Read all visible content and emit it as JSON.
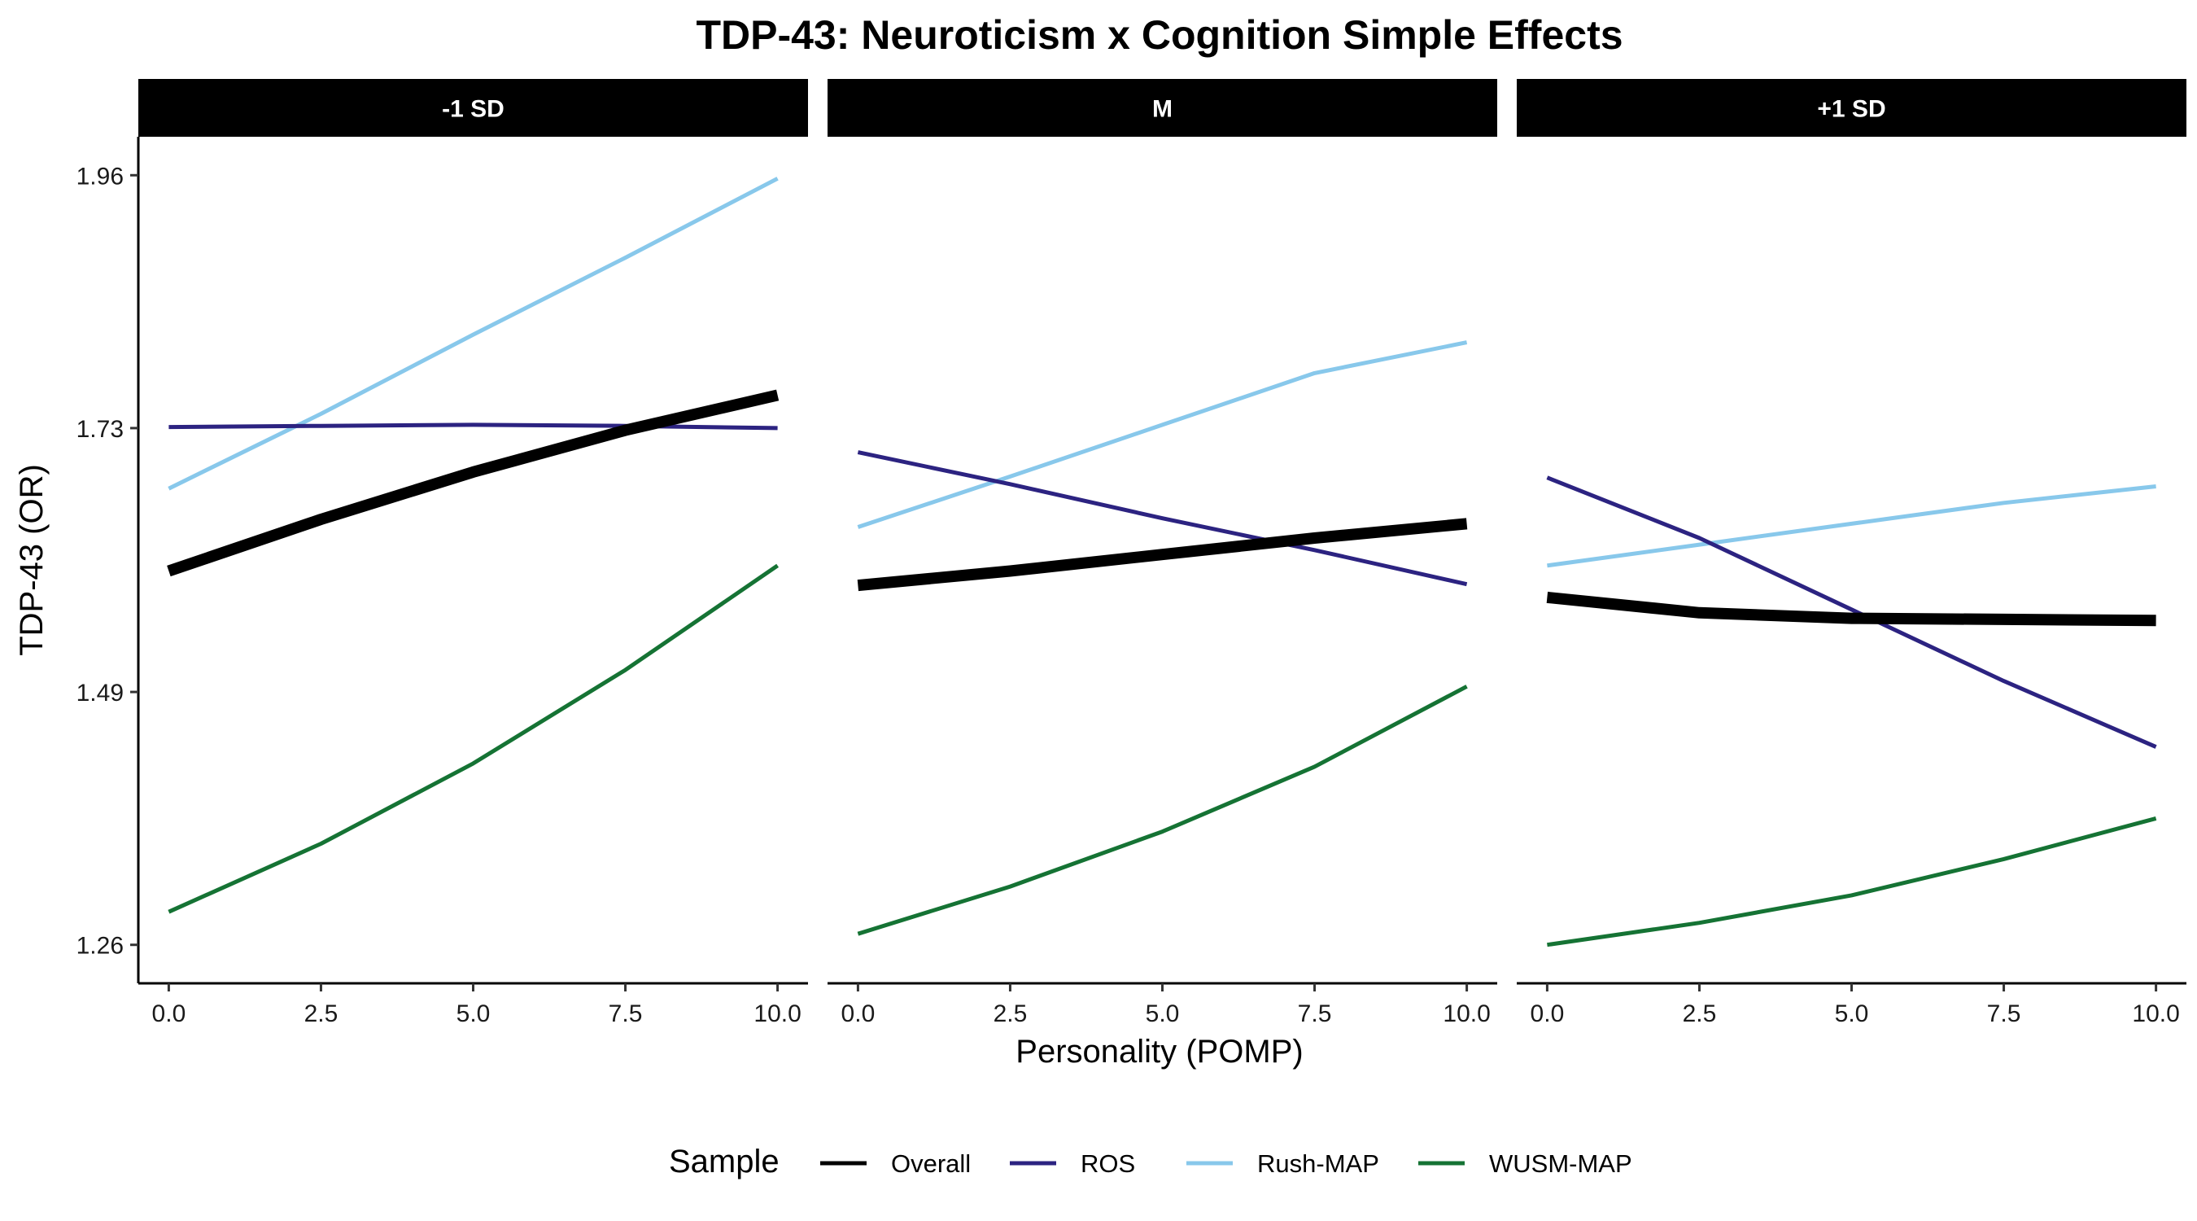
{
  "chart_data": {
    "type": "line",
    "title": "TDP-43: Neuroticism x Cognition Simple Effects",
    "xlabel": "Personality (POMP)",
    "ylabel": "TDP-43 (OR)",
    "x_ticks": [
      "0.0",
      "2.5",
      "5.0",
      "7.5",
      "10.0"
    ],
    "y_ticks": [
      "1.26",
      "1.49",
      "1.73",
      "1.96"
    ],
    "xlim": [
      -0.5,
      10.5
    ],
    "ylim": [
      1.225,
      1.995
    ],
    "grid": false,
    "legend": {
      "title": "Sample",
      "position": "bottom",
      "entries": [
        "Overall",
        "ROS",
        "Rush-MAP",
        "WUSM-MAP"
      ]
    },
    "colors": {
      "Overall": "#000000",
      "ROS": "#2c2381",
      "Rush-MAP": "#88c8eb",
      "WUSM-MAP": "#157334"
    },
    "panels": [
      {
        "label": "-1 SD",
        "series": [
          {
            "name": "Overall",
            "x": [
              0,
              2.5,
              5,
              7.5,
              10
            ],
            "y": [
              1.6,
              1.647,
              1.69,
              1.728,
              1.76
            ]
          },
          {
            "name": "ROS",
            "x": [
              0,
              2.5,
              5,
              7.5,
              10
            ],
            "y": [
              1.731,
              1.732,
              1.733,
              1.732,
              1.73
            ]
          },
          {
            "name": "Rush-MAP",
            "x": [
              0,
              2.5,
              5,
              7.5,
              10
            ],
            "y": [
              1.675,
              1.743,
              1.815,
              1.885,
              1.957
            ]
          },
          {
            "name": "WUSM-MAP",
            "x": [
              0,
              2.5,
              5,
              7.5,
              10
            ],
            "y": [
              1.29,
              1.352,
              1.425,
              1.51,
              1.605
            ]
          }
        ]
      },
      {
        "label": "M",
        "series": [
          {
            "name": "Overall",
            "x": [
              0,
              2.5,
              5,
              7.5,
              10
            ],
            "y": [
              1.587,
              1.6,
              1.615,
              1.63,
              1.643
            ]
          },
          {
            "name": "ROS",
            "x": [
              0,
              2.5,
              5,
              7.5,
              10
            ],
            "y": [
              1.708,
              1.679,
              1.648,
              1.619,
              1.588
            ]
          },
          {
            "name": "Rush-MAP",
            "x": [
              0,
              2.5,
              5,
              7.5,
              10
            ],
            "y": [
              1.64,
              1.686,
              1.733,
              1.78,
              1.808
            ]
          },
          {
            "name": "WUSM-MAP",
            "x": [
              0,
              2.5,
              5,
              7.5,
              10
            ],
            "y": [
              1.27,
              1.313,
              1.363,
              1.422,
              1.495
            ]
          }
        ]
      },
      {
        "label": "+1 SD",
        "series": [
          {
            "name": "Overall",
            "x": [
              0,
              2.5,
              5,
              7.5,
              10
            ],
            "y": [
              1.576,
              1.562,
              1.557,
              1.556,
              1.555
            ]
          },
          {
            "name": "ROS",
            "x": [
              0,
              2.5,
              5,
              7.5,
              10
            ],
            "y": [
              1.685,
              1.63,
              1.565,
              1.5,
              1.44
            ]
          },
          {
            "name": "Rush-MAP",
            "x": [
              0,
              2.5,
              5,
              7.5,
              10
            ],
            "y": [
              1.605,
              1.624,
              1.643,
              1.662,
              1.677
            ]
          },
          {
            "name": "WUSM-MAP",
            "x": [
              0,
              2.5,
              5,
              7.5,
              10
            ],
            "y": [
              1.26,
              1.28,
              1.305,
              1.338,
              1.375
            ]
          }
        ]
      }
    ]
  }
}
